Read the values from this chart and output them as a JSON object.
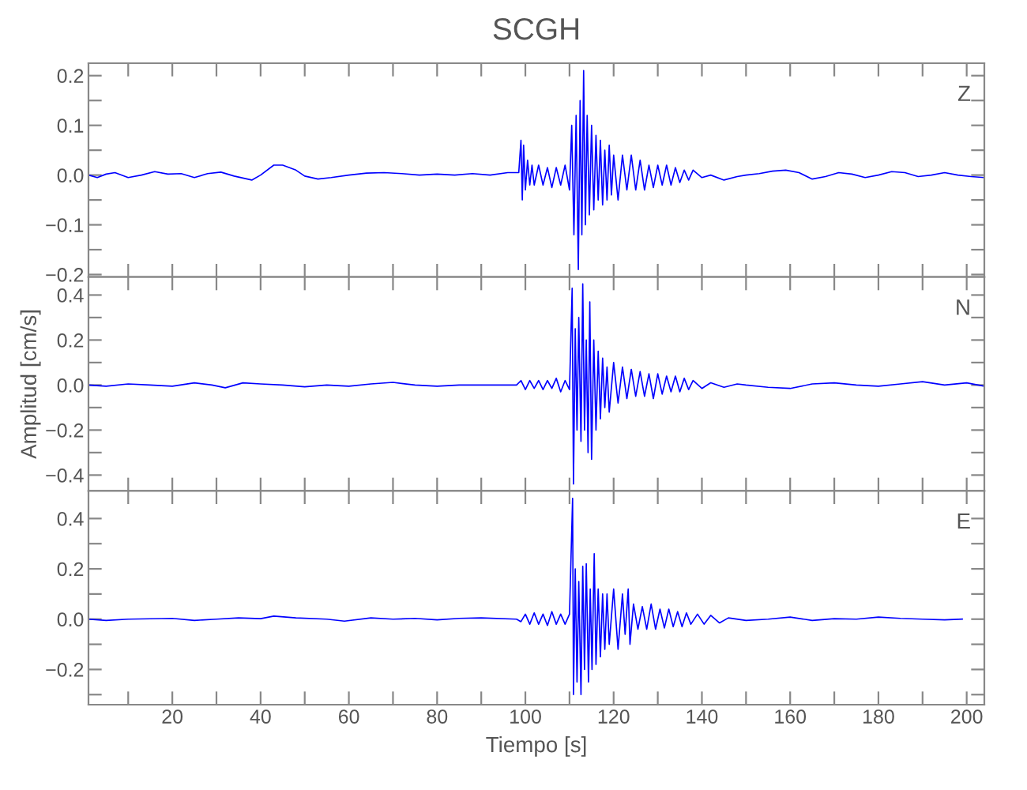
{
  "chart_data": [
    {
      "type": "line",
      "title": "SCGH",
      "annotations": [
        "Z"
      ],
      "tick_labels": "y",
      "xlim": [
        1,
        204
      ],
      "ylim": [
        -0.205,
        0.225
      ],
      "xticks": [
        {
          "value": 10,
          "label": null
        },
        {
          "value": 20,
          "label": null
        },
        {
          "value": 30,
          "label": null
        },
        {
          "value": 40,
          "label": null
        },
        {
          "value": 50,
          "label": null
        },
        {
          "value": 60,
          "label": null
        },
        {
          "value": 70,
          "label": null
        },
        {
          "value": 80,
          "label": null
        },
        {
          "value": 90,
          "label": null
        },
        {
          "value": 100,
          "label": null
        },
        {
          "value": 110,
          "label": null
        },
        {
          "value": 120,
          "label": null
        },
        {
          "value": 130,
          "label": null
        },
        {
          "value": 140,
          "label": null
        },
        {
          "value": 150,
          "label": null
        },
        {
          "value": 160,
          "label": null
        },
        {
          "value": 170,
          "label": null
        },
        {
          "value": 180,
          "label": null
        },
        {
          "value": 190,
          "label": null
        },
        {
          "value": 200,
          "label": null
        }
      ],
      "yticks": [
        {
          "value": 0.2,
          "label": "0.2"
        },
        {
          "value": 0.15,
          "label": null
        },
        {
          "value": 0.1,
          "label": "0.1"
        },
        {
          "value": 0.05,
          "label": null
        },
        {
          "value": 0,
          "label": "0.0"
        },
        {
          "value": -0.05,
          "label": null
        },
        {
          "value": -0.1,
          "label": "−0.1"
        },
        {
          "value": -0.15,
          "label": null
        },
        {
          "value": -0.2,
          "label": "−0.2"
        }
      ],
      "series": [
        {
          "color": "#0000ff",
          "x": [
            1,
            3,
            5,
            7,
            10,
            13,
            16,
            19,
            22,
            25,
            28,
            31,
            34,
            37,
            38,
            40,
            43,
            45,
            48,
            50,
            53,
            56,
            60,
            64,
            68,
            72,
            76,
            80,
            84,
            88,
            92,
            96,
            98.5,
            99,
            99.3,
            99.6,
            100,
            100.5,
            101,
            101.5,
            102,
            103,
            104,
            105,
            106,
            107,
            108,
            109,
            110,
            110.5,
            111,
            111.5,
            112,
            112.4,
            112.8,
            113.2,
            113.6,
            114,
            114.5,
            115,
            115.5,
            116,
            116.5,
            117,
            117.5,
            118,
            118.5,
            119,
            119.5,
            120,
            121,
            122,
            123,
            124,
            125,
            126,
            127,
            128,
            129,
            130,
            131,
            132,
            133,
            134,
            135,
            136,
            137,
            138,
            140,
            142,
            145,
            148,
            150,
            153,
            156,
            159,
            162,
            165,
            168,
            171,
            174,
            177,
            180,
            183,
            186,
            189,
            192,
            195,
            198,
            201,
            204
          ],
          "values": [
            0.0,
            -0.005,
            0.002,
            0.005,
            -0.005,
            0.0,
            0.007,
            0.002,
            0.003,
            -0.005,
            0.003,
            0.006,
            -0.002,
            -0.008,
            -0.01,
            0.0,
            0.02,
            0.02,
            0.01,
            -0.002,
            -0.008,
            -0.005,
            0.0,
            0.004,
            0.005,
            0.003,
            0.0,
            0.002,
            0.0,
            0.003,
            0.0,
            0.005,
            0.005,
            0.07,
            -0.05,
            0.06,
            -0.03,
            0.03,
            -0.02,
            0.02,
            -0.02,
            0.02,
            -0.02,
            0.015,
            -0.025,
            0.015,
            -0.02,
            0.02,
            -0.03,
            0.1,
            -0.12,
            0.12,
            -0.19,
            0.15,
            -0.12,
            0.21,
            -0.1,
            0.12,
            -0.08,
            0.1,
            -0.07,
            0.08,
            -0.05,
            0.07,
            -0.06,
            0.05,
            -0.05,
            0.06,
            -0.04,
            0.04,
            -0.05,
            0.04,
            -0.03,
            0.04,
            -0.03,
            0.03,
            -0.03,
            0.02,
            -0.025,
            0.02,
            -0.02,
            0.02,
            -0.02,
            0.015,
            -0.015,
            0.01,
            -0.01,
            0.01,
            -0.005,
            0.0,
            -0.01,
            -0.003,
            0.0,
            0.003,
            0.008,
            0.01,
            0.005,
            -0.008,
            -0.003,
            0.005,
            0.002,
            -0.005,
            0.0,
            0.007,
            0.005,
            -0.003,
            0.0,
            0.005,
            0.0,
            -0.003,
            -0.005
          ]
        }
      ]
    },
    {
      "type": "line",
      "ylabel": "Amplitud [cm/s]",
      "annotations": [
        "N"
      ],
      "tick_labels": "y",
      "xlim": [
        1,
        204
      ],
      "ylim": [
        -0.47,
        0.48
      ],
      "xticks": [
        {
          "value": 10,
          "label": null
        },
        {
          "value": 20,
          "label": null
        },
        {
          "value": 30,
          "label": null
        },
        {
          "value": 40,
          "label": null
        },
        {
          "value": 50,
          "label": null
        },
        {
          "value": 60,
          "label": null
        },
        {
          "value": 70,
          "label": null
        },
        {
          "value": 80,
          "label": null
        },
        {
          "value": 90,
          "label": null
        },
        {
          "value": 100,
          "label": null
        },
        {
          "value": 110,
          "label": null
        },
        {
          "value": 120,
          "label": null
        },
        {
          "value": 130,
          "label": null
        },
        {
          "value": 140,
          "label": null
        },
        {
          "value": 150,
          "label": null
        },
        {
          "value": 160,
          "label": null
        },
        {
          "value": 170,
          "label": null
        },
        {
          "value": 180,
          "label": null
        },
        {
          "value": 190,
          "label": null
        },
        {
          "value": 200,
          "label": null
        }
      ],
      "yticks": [
        {
          "value": 0.4,
          "label": "0.4"
        },
        {
          "value": 0.3,
          "label": null
        },
        {
          "value": 0.2,
          "label": "0.2"
        },
        {
          "value": 0.1,
          "label": null
        },
        {
          "value": 0,
          "label": "0.0"
        },
        {
          "value": -0.1,
          "label": null
        },
        {
          "value": -0.2,
          "label": "−0.2"
        },
        {
          "value": -0.3,
          "label": null
        },
        {
          "value": -0.4,
          "label": "−0.4"
        }
      ],
      "series": [
        {
          "color": "#0000ff",
          "x": [
            1,
            5,
            10,
            15,
            20,
            25,
            29,
            32,
            36,
            40,
            45,
            50,
            55,
            60,
            65,
            70,
            75,
            80,
            85,
            90,
            98,
            99,
            100,
            101,
            102,
            103,
            104,
            105,
            106,
            107,
            108,
            109,
            110,
            110.6,
            110.9,
            111.3,
            111.7,
            112.1,
            112.6,
            113.0,
            113.4,
            113.8,
            114.2,
            114.6,
            115.0,
            115.5,
            116,
            116.5,
            117,
            117.5,
            118,
            118.5,
            119,
            120,
            121,
            122,
            123,
            124,
            125,
            126,
            127,
            128,
            129,
            130,
            131,
            132,
            133,
            134,
            135,
            136,
            137,
            138,
            140,
            142,
            145,
            148,
            150,
            155,
            160,
            165,
            170,
            175,
            180,
            185,
            190,
            195,
            200,
            204
          ],
          "values": [
            0.0,
            -0.005,
            0.005,
            0.0,
            -0.005,
            0.01,
            0.0,
            -0.012,
            0.01,
            0.005,
            0.0,
            -0.008,
            0.0,
            -0.005,
            0.005,
            0.012,
            0.0,
            -0.005,
            0.0,
            0.0,
            0.0,
            0.02,
            -0.02,
            0.02,
            -0.015,
            0.02,
            -0.02,
            0.02,
            -0.015,
            0.03,
            -0.03,
            0.02,
            -0.02,
            0.43,
            -0.44,
            0.25,
            -0.2,
            0.3,
            -0.25,
            0.45,
            -0.2,
            0.2,
            -0.3,
            0.37,
            -0.33,
            0.2,
            -0.2,
            0.15,
            -0.15,
            0.12,
            -0.1,
            0.08,
            -0.12,
            0.1,
            -0.08,
            0.08,
            -0.06,
            0.07,
            -0.05,
            0.06,
            -0.05,
            0.05,
            -0.06,
            0.05,
            -0.04,
            0.04,
            -0.03,
            0.04,
            -0.03,
            0.03,
            -0.02,
            0.02,
            -0.015,
            0.01,
            -0.01,
            0.005,
            0.0,
            -0.01,
            -0.015,
            0.005,
            0.01,
            0.0,
            -0.005,
            0.005,
            0.015,
            0.0,
            0.01,
            -0.005
          ]
        }
      ]
    },
    {
      "type": "line",
      "xlabel": "Tiempo [s]",
      "annotations": [
        "E"
      ],
      "xlim": [
        1,
        204
      ],
      "ylim": [
        -0.34,
        0.51
      ],
      "xticks": [
        {
          "value": 10,
          "label": null
        },
        20,
        {
          "value": 30,
          "label": null
        },
        40,
        {
          "value": 50,
          "label": null
        },
        60,
        {
          "value": 70,
          "label": null
        },
        80,
        {
          "value": 90,
          "label": null
        },
        100,
        {
          "value": 110,
          "label": null
        },
        120,
        {
          "value": 130,
          "label": null
        },
        140,
        {
          "value": 150,
          "label": null
        },
        160,
        {
          "value": 170,
          "label": null
        },
        180,
        {
          "value": 190,
          "label": null
        },
        200
      ],
      "yticks": [
        {
          "value": 0.4,
          "label": "0.4"
        },
        {
          "value": 0.3,
          "label": null
        },
        {
          "value": 0.2,
          "label": "0.2"
        },
        {
          "value": 0.1,
          "label": null
        },
        {
          "value": 0,
          "label": "0.0"
        },
        {
          "value": -0.1,
          "label": null
        },
        {
          "value": -0.2,
          "label": "−0.2"
        },
        {
          "value": -0.3,
          "label": null
        }
      ],
      "series": [
        {
          "color": "#0000ff",
          "x": [
            1,
            5,
            10,
            20,
            25,
            30,
            35,
            40,
            43,
            48,
            55,
            59,
            65,
            70,
            75,
            80,
            85,
            90,
            98,
            99,
            100,
            101,
            102,
            103,
            104,
            105,
            106,
            107,
            108,
            109,
            110,
            110.7,
            110.9,
            111.3,
            111.7,
            112.1,
            112.6,
            113,
            113.4,
            113.8,
            114.3,
            114.7,
            115.1,
            115.6,
            116,
            116.5,
            117,
            117.5,
            118,
            118.5,
            119,
            120,
            121,
            122,
            122.6,
            123.3,
            123.7,
            124.5,
            125.5,
            126.5,
            127.5,
            128.5,
            129.5,
            130.5,
            131.5,
            132.5,
            133.5,
            134.5,
            135.5,
            136.5,
            137.5,
            139,
            140.5,
            142,
            144,
            146,
            150,
            155,
            160,
            165,
            170,
            175,
            180,
            185,
            190,
            195,
            199
          ],
          "values": [
            0.0,
            -0.005,
            0.0,
            0.003,
            -0.005,
            0.0,
            0.005,
            0.002,
            0.012,
            0.005,
            0.0,
            -0.008,
            0.005,
            0.0,
            0.003,
            -0.003,
            0.003,
            0.005,
            0.0,
            -0.01,
            0.02,
            -0.02,
            0.025,
            -0.02,
            0.02,
            -0.025,
            0.03,
            -0.02,
            0.02,
            -0.02,
            0.02,
            0.48,
            -0.3,
            0.2,
            -0.25,
            0.15,
            -0.3,
            0.21,
            -0.2,
            0.22,
            -0.25,
            0.12,
            -0.2,
            0.26,
            -0.18,
            0.12,
            -0.15,
            0.1,
            -0.12,
            0.1,
            -0.1,
            0.12,
            -0.12,
            0.1,
            -0.06,
            0.12,
            -0.1,
            0.06,
            -0.04,
            0.05,
            -0.04,
            0.06,
            -0.04,
            0.04,
            -0.035,
            0.04,
            -0.03,
            0.03,
            -0.03,
            0.025,
            -0.02,
            0.02,
            -0.02,
            0.015,
            -0.015,
            0.005,
            -0.005,
            0.0,
            0.008,
            -0.005,
            0.002,
            0.0,
            0.008,
            0.003,
            0.0,
            -0.003,
            0.0
          ]
        }
      ]
    }
  ]
}
